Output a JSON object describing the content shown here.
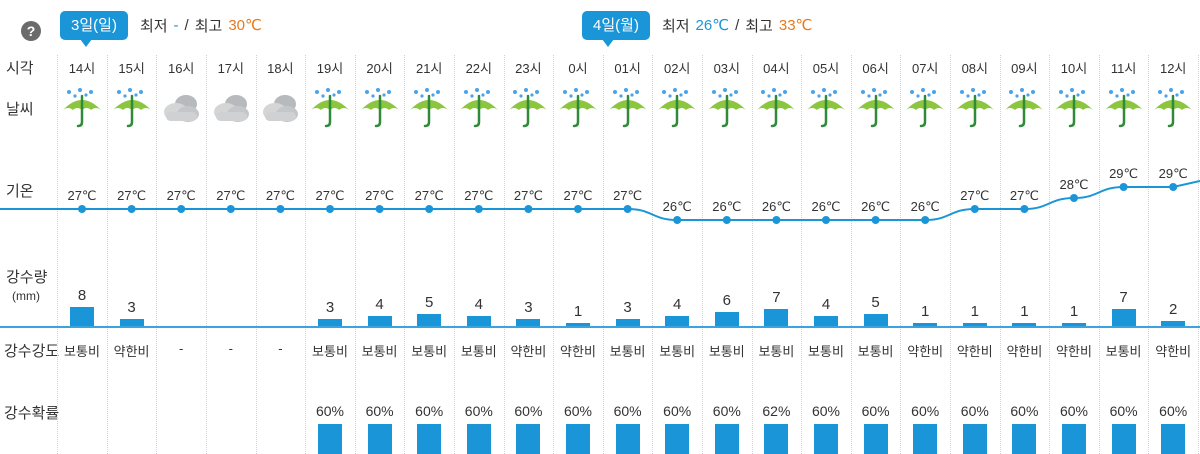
{
  "help": {
    "icon": "question-icon",
    "glyph": "?"
  },
  "days": [
    {
      "badge": "3일(일)",
      "min_label": "최저",
      "min_value": "-",
      "sep": "/",
      "max_label": "최고",
      "max_value": "30℃"
    },
    {
      "badge": "4일(월)",
      "min_label": "최저",
      "min_value": "26℃",
      "sep": "/",
      "max_label": "최고",
      "max_value": "33℃"
    }
  ],
  "row_labels": {
    "time": "시각",
    "weather": "날씨",
    "temperature": "기온",
    "precip_amount": "강수량",
    "precip_unit": "(mm)",
    "intensity": "강수강도",
    "probability": "강수확률"
  },
  "colors": {
    "accent": "#1a96d8",
    "max_temp": "#e8791e",
    "baseline": "#3aa3e0"
  },
  "hours": [
    "14시",
    "15시",
    "16시",
    "17시",
    "18시",
    "19시",
    "20시",
    "21시",
    "22시",
    "23시",
    "0시",
    "01시",
    "02시",
    "03시",
    "04시",
    "05시",
    "06시",
    "07시",
    "08시",
    "09시",
    "10시",
    "11시",
    "12시"
  ],
  "weather": [
    "rain-umbrella-icon",
    "rain-umbrella-icon",
    "cloudy-icon",
    "cloudy-icon",
    "cloudy-icon",
    "rain-umbrella-icon",
    "rain-umbrella-icon",
    "rain-umbrella-icon",
    "rain-umbrella-icon",
    "rain-umbrella-icon",
    "rain-umbrella-icon",
    "rain-umbrella-icon",
    "rain-umbrella-icon",
    "rain-umbrella-icon",
    "rain-umbrella-icon",
    "rain-umbrella-icon",
    "rain-umbrella-icon",
    "rain-umbrella-icon",
    "rain-umbrella-icon",
    "rain-umbrella-icon",
    "rain-umbrella-icon",
    "rain-umbrella-icon",
    "rain-umbrella-icon"
  ],
  "temperature": [
    27,
    27,
    27,
    27,
    27,
    27,
    27,
    27,
    27,
    27,
    27,
    27,
    26,
    26,
    26,
    26,
    26,
    26,
    27,
    27,
    28,
    29,
    29
  ],
  "temperature_labels": [
    "27℃",
    "27℃",
    "27℃",
    "27℃",
    "27℃",
    "27℃",
    "27℃",
    "27℃",
    "27℃",
    "27℃",
    "27℃",
    "27℃",
    "26℃",
    "26℃",
    "26℃",
    "26℃",
    "26℃",
    "26℃",
    "27℃",
    "27℃",
    "28℃",
    "29℃",
    "29℃"
  ],
  "precip_amount": [
    8,
    3,
    null,
    null,
    null,
    3,
    4,
    5,
    4,
    3,
    1,
    3,
    4,
    6,
    7,
    4,
    5,
    1,
    1,
    1,
    1,
    7,
    2
  ],
  "precip_amount_labels": [
    "8",
    "3",
    "",
    "",
    "",
    "3",
    "4",
    "5",
    "4",
    "3",
    "1",
    "3",
    "4",
    "6",
    "7",
    "4",
    "5",
    "1",
    "1",
    "1",
    "1",
    "7",
    "2"
  ],
  "intensity": [
    "보통비",
    "약한비",
    "-",
    "-",
    "-",
    "보통비",
    "보통비",
    "보통비",
    "보통비",
    "약한비",
    "약한비",
    "보통비",
    "보통비",
    "보통비",
    "보통비",
    "보통비",
    "보통비",
    "약한비",
    "약한비",
    "약한비",
    "약한비",
    "보통비",
    "약한비"
  ],
  "probability": [
    null,
    null,
    null,
    null,
    null,
    60,
    60,
    60,
    60,
    60,
    60,
    60,
    60,
    60,
    62,
    60,
    60,
    60,
    60,
    60,
    60,
    60,
    60
  ],
  "probability_labels": [
    "",
    "",
    "",
    "",
    "",
    "60%",
    "60%",
    "60%",
    "60%",
    "60%",
    "60%",
    "60%",
    "60%",
    "60%",
    "62%",
    "60%",
    "60%",
    "60%",
    "60%",
    "60%",
    "60%",
    "60%",
    "60%"
  ]
}
